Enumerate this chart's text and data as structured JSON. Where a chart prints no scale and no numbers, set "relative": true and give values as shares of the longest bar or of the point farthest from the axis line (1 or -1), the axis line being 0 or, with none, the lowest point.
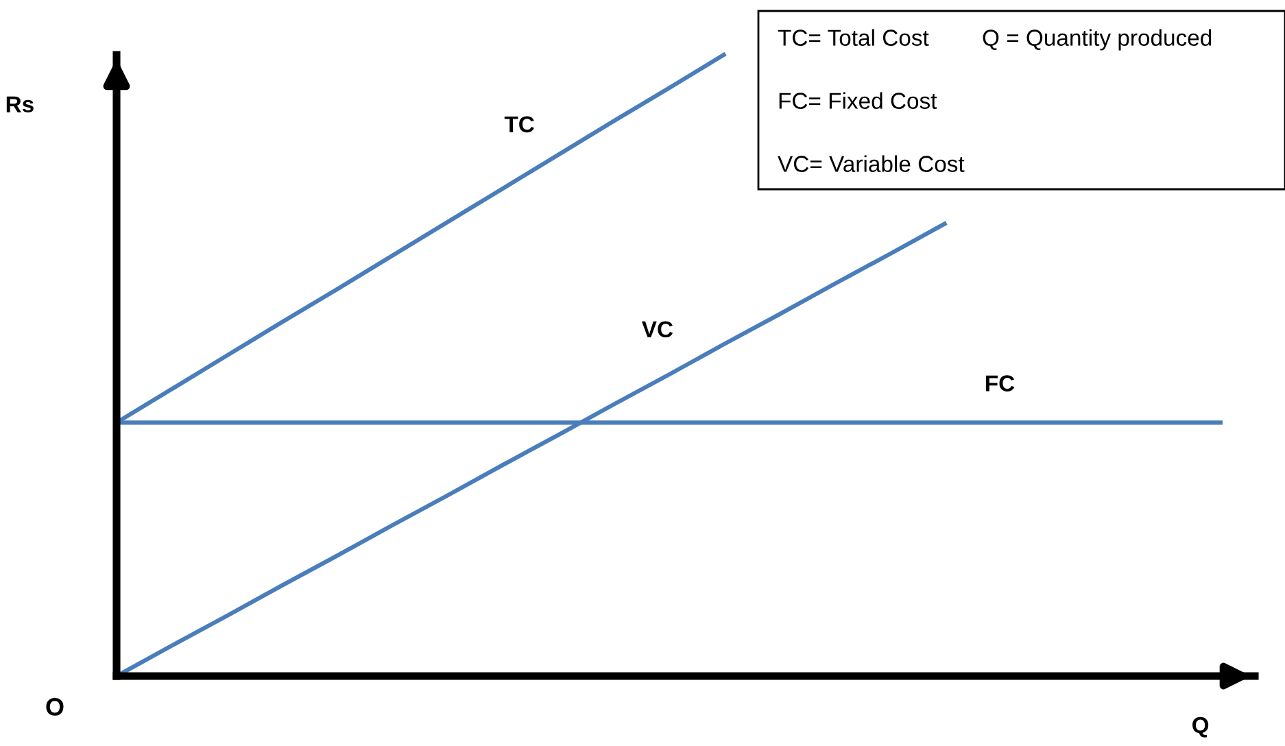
{
  "chart_data": {
    "type": "line",
    "relative": true,
    "xlabel": "Q",
    "ylabel": "Rs",
    "categories": [
      null,
      null,
      null,
      null,
      null,
      null,
      null,
      null,
      null,
      null,
      null,
      null,
      null,
      null,
      null,
      null,
      null,
      null,
      null,
      null,
      null
    ],
    "series": [
      {
        "name": "TC",
        "color": "#4a7ebb",
        "values": [
          0.408,
          0.462,
          0.516,
          0.57,
          0.623,
          0.677,
          0.731,
          0.785,
          0.839,
          0.893,
          0.946,
          1.0,
          null,
          null,
          null,
          null,
          null,
          null,
          null,
          null,
          null
        ]
      },
      {
        "name": "VC",
        "color": "#4a7ebb",
        "values": [
          0,
          0.049,
          0.097,
          0.146,
          0.194,
          0.243,
          0.291,
          0.34,
          0.388,
          0.437,
          0.485,
          0.534,
          0.582,
          0.631,
          0.679,
          0.728,
          null,
          null,
          null,
          null,
          null
        ]
      },
      {
        "name": "FC",
        "color": "#4a7ebb",
        "values": [
          0.408,
          0.408,
          0.408,
          0.408,
          0.408,
          0.408,
          0.408,
          0.408,
          0.408,
          0.408,
          0.408,
          0.408,
          0.408,
          0.408,
          0.408,
          0.408,
          0.408,
          0.408,
          0.408,
          0.408,
          0.408
        ]
      }
    ],
    "annotations": [
      "O",
      "TC= Total Cost",
      "Q = Quantity produced",
      "FC= Fixed Cost",
      "VC= Variable Cost"
    ],
    "grid": false,
    "legend": false,
    "marker": "none",
    "line_style": "solid"
  }
}
